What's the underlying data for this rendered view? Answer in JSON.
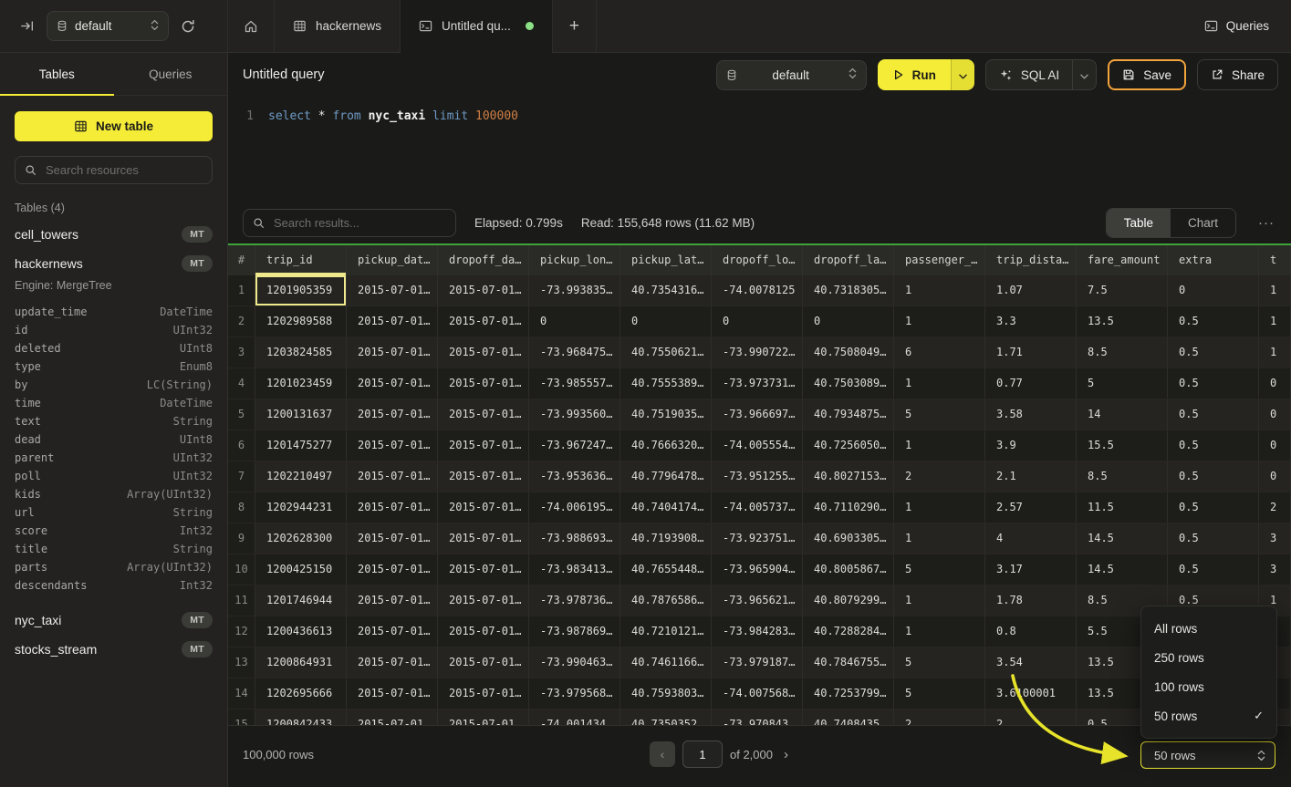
{
  "colors": {
    "accent_yellow": "#f4ec37",
    "save_border_orange": "#f2a33c",
    "tab_dot_green": "#8ce085",
    "table_success_green": "#3da53a",
    "selected_cell_yellow": "#efe98e"
  },
  "topbar": {
    "database_selector": "default",
    "tabs": [
      {
        "label": "hackernews"
      },
      {
        "label": "Untitled qu..."
      }
    ],
    "add_tab_label": "+",
    "queries_label": "Queries"
  },
  "sidebar": {
    "tab_tables": "Tables",
    "tab_queries": "Queries",
    "new_table_label": "New table",
    "search_placeholder": "Search resources",
    "section_label": "Tables (4)",
    "tables": [
      {
        "name": "cell_towers",
        "badge": "MT"
      },
      {
        "name": "hackernews",
        "badge": "MT",
        "engine": "Engine: MergeTree",
        "columns": [
          {
            "name": "update_time",
            "type": "DateTime"
          },
          {
            "name": "id",
            "type": "UInt32"
          },
          {
            "name": "deleted",
            "type": "UInt8"
          },
          {
            "name": "type",
            "type": "Enum8"
          },
          {
            "name": "by",
            "type": "LC(String)"
          },
          {
            "name": "time",
            "type": "DateTime"
          },
          {
            "name": "text",
            "type": "String"
          },
          {
            "name": "dead",
            "type": "UInt8"
          },
          {
            "name": "parent",
            "type": "UInt32"
          },
          {
            "name": "poll",
            "type": "UInt32"
          },
          {
            "name": "kids",
            "type": "Array(UInt32)"
          },
          {
            "name": "url",
            "type": "String"
          },
          {
            "name": "score",
            "type": "Int32"
          },
          {
            "name": "title",
            "type": "String"
          },
          {
            "name": "parts",
            "type": "Array(UInt32)"
          },
          {
            "name": "descendants",
            "type": "Int32"
          }
        ]
      },
      {
        "name": "nyc_taxi",
        "badge": "MT"
      },
      {
        "name": "stocks_stream",
        "badge": "MT"
      }
    ]
  },
  "query": {
    "title": "Untitled query",
    "database_selector": "default",
    "run_label": "Run",
    "sql_ai_label": "SQL AI",
    "save_label": "Save",
    "share_label": "Share",
    "editor": {
      "line_number": "1",
      "tokens": [
        {
          "text": "select",
          "type": "keyword"
        },
        {
          "text": "*",
          "type": "operator"
        },
        {
          "text": "from",
          "type": "keyword"
        },
        {
          "text": "nyc_taxi",
          "type": "identifier"
        },
        {
          "text": "limit",
          "type": "keyword"
        },
        {
          "text": "100000",
          "type": "number"
        }
      ]
    }
  },
  "results": {
    "search_placeholder": "Search results...",
    "elapsed": "Elapsed: 0.799s",
    "read": "Read: 155,648 rows (11.62 MB)",
    "view_table_label": "Table",
    "view_chart_label": "Chart",
    "more_label": "···",
    "columns": [
      "#",
      "trip_id",
      "pickup_dat…",
      "dropoff_da…",
      "pickup_lon…",
      "pickup_lat…",
      "dropoff_lo…",
      "dropoff_la…",
      "passenger_…",
      "trip_dista…",
      "fare_amount",
      "extra",
      "t"
    ],
    "selected": {
      "row": 1,
      "column": "trip_id"
    },
    "rows": [
      [
        "1201905359",
        "2015-07-01…",
        "2015-07-01…",
        "-73.993835…",
        "40.7354316…",
        "-74.0078125",
        "40.7318305…",
        "1",
        "1.07",
        "7.5",
        "0",
        "1"
      ],
      [
        "1202989588",
        "2015-07-01…",
        "2015-07-01…",
        "0",
        "0",
        "0",
        "0",
        "1",
        "3.3",
        "13.5",
        "0.5",
        "1"
      ],
      [
        "1203824585",
        "2015-07-01…",
        "2015-07-01…",
        "-73.968475…",
        "40.7550621…",
        "-73.990722…",
        "40.7508049…",
        "6",
        "1.71",
        "8.5",
        "0.5",
        "1"
      ],
      [
        "1201023459",
        "2015-07-01…",
        "2015-07-01…",
        "-73.985557…",
        "40.7555389…",
        "-73.973731…",
        "40.7503089…",
        "1",
        "0.77",
        "5",
        "0.5",
        "0"
      ],
      [
        "1200131637",
        "2015-07-01…",
        "2015-07-01…",
        "-73.993560…",
        "40.7519035…",
        "-73.966697…",
        "40.7934875…",
        "5",
        "3.58",
        "14",
        "0.5",
        "0"
      ],
      [
        "1201475277",
        "2015-07-01…",
        "2015-07-01…",
        "-73.967247…",
        "40.7666320…",
        "-74.005554…",
        "40.7256050…",
        "1",
        "3.9",
        "15.5",
        "0.5",
        "0"
      ],
      [
        "1202210497",
        "2015-07-01…",
        "2015-07-01…",
        "-73.953636…",
        "40.7796478…",
        "-73.951255…",
        "40.8027153…",
        "2",
        "2.1",
        "8.5",
        "0.5",
        "0"
      ],
      [
        "1202944231",
        "2015-07-01…",
        "2015-07-01…",
        "-74.006195…",
        "40.7404174…",
        "-74.005737…",
        "40.7110290…",
        "1",
        "2.57",
        "11.5",
        "0.5",
        "2"
      ],
      [
        "1202628300",
        "2015-07-01…",
        "2015-07-01…",
        "-73.988693…",
        "40.7193908…",
        "-73.923751…",
        "40.6903305…",
        "1",
        "4",
        "14.5",
        "0.5",
        "3"
      ],
      [
        "1200425150",
        "2015-07-01…",
        "2015-07-01…",
        "-73.983413…",
        "40.7655448…",
        "-73.965904…",
        "40.8005867…",
        "5",
        "3.17",
        "14.5",
        "0.5",
        "3"
      ],
      [
        "1201746944",
        "2015-07-01…",
        "2015-07-01…",
        "-73.978736…",
        "40.7876586…",
        "-73.965621…",
        "40.8079299…",
        "1",
        "1.78",
        "8.5",
        "0.5",
        "1"
      ],
      [
        "1200436613",
        "2015-07-01…",
        "2015-07-01…",
        "-73.987869…",
        "40.7210121…",
        "-73.984283…",
        "40.7288284…",
        "1",
        "0.8",
        "5.5",
        "",
        ""
      ],
      [
        "1200864931",
        "2015-07-01…",
        "2015-07-01…",
        "-73.990463…",
        "40.7461166…",
        "-73.979187…",
        "40.7846755…",
        "5",
        "3.54",
        "13.5",
        "",
        ""
      ],
      [
        "1202695666",
        "2015-07-01…",
        "2015-07-01…",
        "-73.979568…",
        "40.7593803…",
        "-74.007568…",
        "40.7253799…",
        "5",
        "3.6100001",
        "13.5",
        "",
        ""
      ],
      [
        "1200842433",
        "2015-07-01…",
        "2015-07-01…",
        "-74.001434",
        "40.7350352",
        "-73.970843",
        "40.7408435",
        "2",
        "2",
        "0.5",
        "",
        ""
      ]
    ]
  },
  "rows_menu": {
    "items": [
      "All rows",
      "250 rows",
      "100 rows",
      "50 rows"
    ],
    "selected": "50 rows"
  },
  "footer": {
    "total_rows": "100,000 rows",
    "page_value": "1",
    "page_of": "of 2,000",
    "prev_label": "‹",
    "next_label": "›",
    "page_size": "50 rows"
  }
}
